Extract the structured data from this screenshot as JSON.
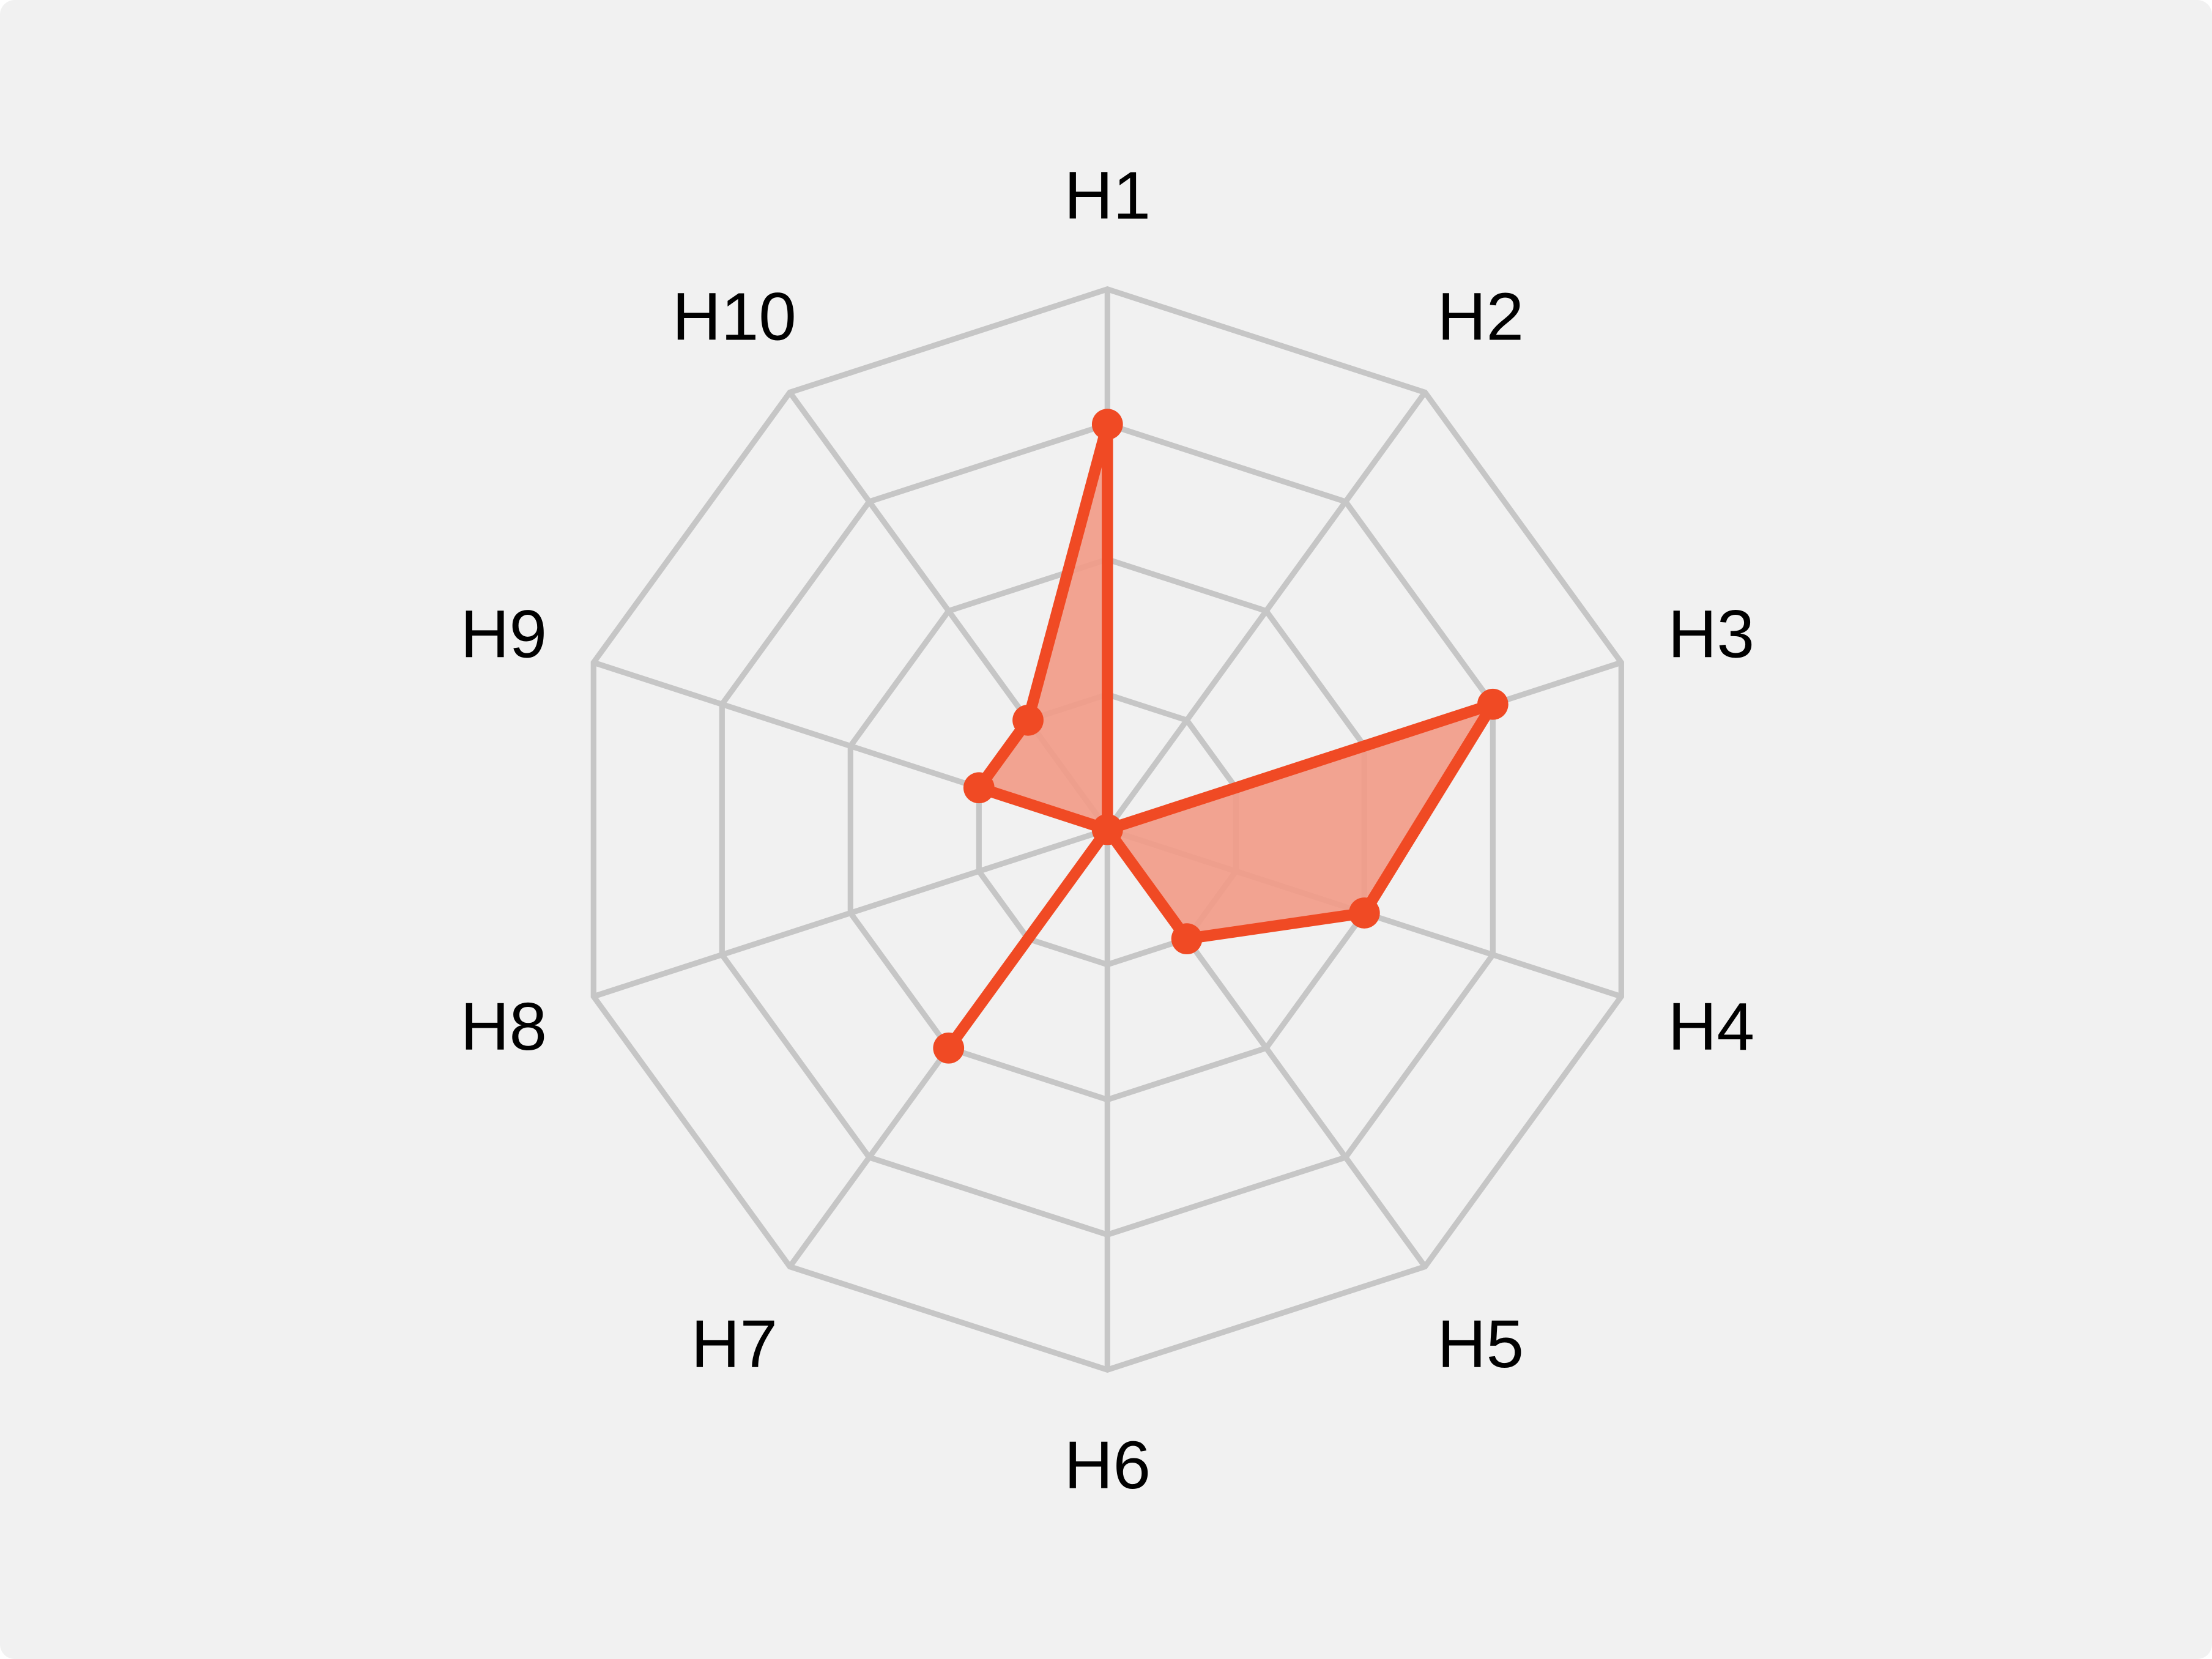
{
  "chart_data": {
    "type": "radar",
    "categories": [
      "H1",
      "H2",
      "H3",
      "H4",
      "H5",
      "H6",
      "H7",
      "H8",
      "H9",
      "H10"
    ],
    "series": [
      {
        "values": [
          3,
          0,
          3,
          2,
          1,
          0,
          2,
          0,
          1,
          1
        ]
      }
    ],
    "rlim": [
      0,
      4
    ],
    "rings": 4,
    "grid": true,
    "colors": {
      "line": "#f04a24",
      "fill": "#f29a86",
      "grid": "#c6c6c6",
      "background": "#f1f1f1"
    }
  }
}
